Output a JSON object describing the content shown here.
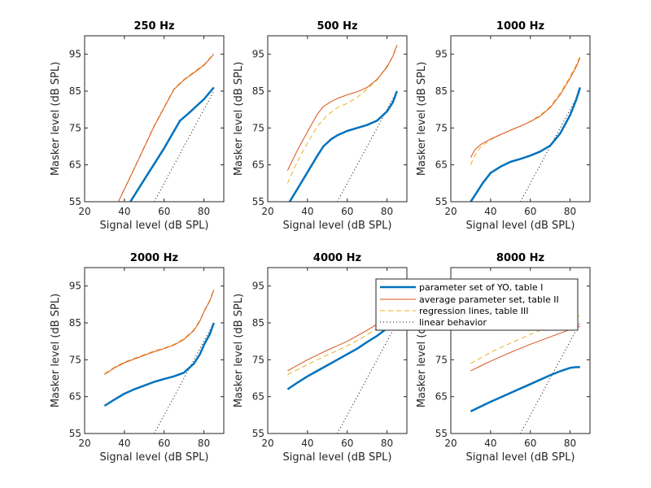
{
  "figure": {
    "background": "#ffffff"
  },
  "colors": {
    "yo": "#0072BD",
    "average": "#D95319",
    "regression": "#EDB120",
    "linear": "#000000"
  },
  "legend": {
    "position": "top-right of 8000 Hz panel",
    "entries": [
      {
        "key": "yo",
        "label": "parameter set of YO, table I"
      },
      {
        "key": "average",
        "label": "average parameter set, table II"
      },
      {
        "key": "regression",
        "label": "regression lines, table III"
      },
      {
        "key": "linear",
        "label": "linear behavior"
      }
    ]
  },
  "chart_data": [
    {
      "type": "line",
      "title": "250 Hz",
      "xlabel": "Signal level (dB SPL)",
      "ylabel": "Masker level (dB SPL)",
      "xlim": [
        20,
        90
      ],
      "ylim": [
        55,
        100
      ],
      "xticks": [
        20,
        40,
        60,
        80
      ],
      "yticks": [
        55,
        65,
        75,
        85,
        95
      ],
      "grid": false,
      "series": [
        {
          "name": "parameter set of YO, table I",
          "key": "yo",
          "x": [
            43,
            50,
            60,
            68,
            72,
            76,
            80,
            85
          ],
          "y": [
            55,
            61,
            69.5,
            77,
            78.8,
            80.8,
            82.8,
            86
          ]
        },
        {
          "name": "average parameter set, table II",
          "key": "average",
          "x": [
            37,
            45,
            55,
            65,
            70,
            75,
            80,
            85
          ],
          "y": [
            55,
            64,
            75.5,
            85.5,
            88,
            90,
            92,
            95
          ]
        },
        {
          "name": "regression lines, table III",
          "key": "regression",
          "x": [
            37,
            45,
            55,
            65,
            70,
            75,
            80,
            85
          ],
          "y": [
            55,
            64.2,
            75.7,
            85.7,
            88.2,
            90.2,
            92.2,
            95.2
          ]
        },
        {
          "name": "linear behavior",
          "key": "linear",
          "x": [
            55,
            85
          ],
          "y": [
            55,
            85
          ]
        }
      ]
    },
    {
      "type": "line",
      "title": "500 Hz",
      "xlabel": "Signal level (dB SPL)",
      "ylabel": "Masker level (dB SPL)",
      "xlim": [
        20,
        90
      ],
      "ylim": [
        55,
        100
      ],
      "xticks": [
        20,
        40,
        60,
        80
      ],
      "yticks": [
        55,
        65,
        75,
        85,
        95
      ],
      "grid": false,
      "series": [
        {
          "name": "parameter set of YO, table I",
          "key": "yo",
          "x": [
            31,
            35,
            40,
            45,
            48,
            52,
            55,
            60,
            65,
            70,
            75,
            80,
            83,
            85
          ],
          "y": [
            55,
            58.5,
            63,
            67.5,
            70,
            72,
            73,
            74.2,
            75,
            75.8,
            77,
            79.5,
            82,
            85
          ]
        },
        {
          "name": "average parameter set, table II",
          "key": "average",
          "x": [
            30,
            35,
            40,
            45,
            48,
            52,
            55,
            60,
            65,
            70,
            75,
            80,
            83,
            85
          ],
          "y": [
            63.5,
            69,
            74,
            78.8,
            80.8,
            82.2,
            83,
            84,
            84.8,
            86,
            88.2,
            91.5,
            94.5,
            97.5
          ]
        },
        {
          "name": "regression lines, table III",
          "key": "regression",
          "x": [
            30,
            35,
            40,
            45,
            50,
            55,
            60,
            65,
            70,
            75,
            80,
            83,
            85
          ],
          "y": [
            60,
            66,
            71,
            75.5,
            78.5,
            80.5,
            81.7,
            83.3,
            85.5,
            88,
            91.8,
            94.5,
            97
          ]
        },
        {
          "name": "linear behavior",
          "key": "linear",
          "x": [
            55,
            85
          ],
          "y": [
            55,
            85
          ]
        }
      ]
    },
    {
      "type": "line",
      "title": "1000 Hz",
      "xlabel": "Signal level (dB SPL)",
      "ylabel": "Masker level (dB SPL)",
      "xlim": [
        20,
        90
      ],
      "ylim": [
        55,
        100
      ],
      "xticks": [
        20,
        40,
        60,
        80
      ],
      "yticks": [
        55,
        65,
        75,
        85,
        95
      ],
      "grid": false,
      "series": [
        {
          "name": "parameter set of YO, table I",
          "key": "yo",
          "x": [
            30,
            33,
            36,
            40,
            45,
            50,
            55,
            60,
            65,
            70,
            75,
            80,
            83,
            85
          ],
          "y": [
            55,
            57.5,
            60,
            62.8,
            64.5,
            65.8,
            66.6,
            67.5,
            68.6,
            70.2,
            73.5,
            78.5,
            82.5,
            86
          ]
        },
        {
          "name": "average parameter set, table II",
          "key": "average",
          "x": [
            30,
            32,
            35,
            40,
            45,
            50,
            55,
            60,
            65,
            70,
            75,
            80,
            83,
            85
          ],
          "y": [
            67,
            69,
            70.5,
            72,
            73.2,
            74.4,
            75.5,
            76.7,
            78.2,
            80.5,
            84,
            88.5,
            91.5,
            94
          ]
        },
        {
          "name": "regression lines, table III",
          "key": "regression",
          "x": [
            30,
            32,
            35,
            40,
            45,
            50,
            55,
            60,
            65,
            70,
            75,
            80,
            83,
            85
          ],
          "y": [
            65,
            67.5,
            69.8,
            71.8,
            73.2,
            74.4,
            75.5,
            76.8,
            78.5,
            80.8,
            84.5,
            89,
            92,
            94.5
          ]
        },
        {
          "name": "linear behavior",
          "key": "linear",
          "x": [
            55,
            85
          ],
          "y": [
            55,
            85
          ]
        }
      ]
    },
    {
      "type": "line",
      "title": "2000 Hz",
      "xlabel": "Signal level (dB SPL)",
      "ylabel": "Masker level (dB SPL)",
      "xlim": [
        20,
        90
      ],
      "ylim": [
        55,
        100
      ],
      "xticks": [
        20,
        40,
        60,
        80
      ],
      "yticks": [
        55,
        65,
        75,
        85,
        95
      ],
      "grid": false,
      "series": [
        {
          "name": "parameter set of YO, table I",
          "key": "yo",
          "x": [
            30,
            35,
            40,
            45,
            50,
            55,
            60,
            65,
            70,
            75,
            78,
            80,
            83,
            85
          ],
          "y": [
            62.5,
            64.2,
            65.8,
            67,
            68,
            69,
            69.8,
            70.5,
            71.5,
            74,
            76.5,
            79,
            82,
            85
          ]
        },
        {
          "name": "average parameter set, table II",
          "key": "average",
          "x": [
            30,
            35,
            40,
            45,
            50,
            55,
            60,
            65,
            70,
            75,
            78,
            80,
            83,
            85
          ],
          "y": [
            71,
            72.8,
            74.2,
            75.2,
            76.2,
            77.2,
            78,
            79,
            80.5,
            83,
            85.5,
            88,
            91,
            94
          ]
        },
        {
          "name": "regression lines, table III",
          "key": "regression",
          "x": [
            30,
            35,
            40,
            45,
            50,
            55,
            60,
            65,
            70,
            75,
            78,
            80,
            83,
            85
          ],
          "y": [
            71.3,
            73,
            74.4,
            75.4,
            76.4,
            77.4,
            78.2,
            79.2,
            80.7,
            83.2,
            85.7,
            88.2,
            91.2,
            94.2
          ]
        },
        {
          "name": "linear behavior",
          "key": "linear",
          "x": [
            55,
            85
          ],
          "y": [
            55,
            85
          ]
        }
      ]
    },
    {
      "type": "line",
      "title": "4000 Hz",
      "xlabel": "Signal level (dB SPL)",
      "ylabel": "Masker level (dB SPL)",
      "xlim": [
        20,
        90
      ],
      "ylim": [
        55,
        100
      ],
      "xticks": [
        20,
        40,
        60,
        80
      ],
      "yticks": [
        55,
        65,
        75,
        85,
        95
      ],
      "grid": false,
      "series": [
        {
          "name": "parameter set of YO, table I",
          "key": "yo",
          "x": [
            30,
            35,
            40,
            45,
            50,
            55,
            60,
            65,
            70,
            75,
            80,
            83,
            85
          ],
          "y": [
            67,
            68.8,
            70.5,
            72,
            73.5,
            75,
            76.5,
            78,
            79.8,
            81.5,
            83.5,
            84.8,
            86
          ]
        },
        {
          "name": "average parameter set, table II",
          "key": "average",
          "x": [
            30,
            35,
            40,
            45,
            50,
            55,
            60,
            65,
            70,
            75,
            80,
            83,
            85
          ],
          "y": [
            72,
            73.5,
            75,
            76.3,
            77.6,
            78.8,
            80,
            81.5,
            83,
            84.7,
            86.5,
            88,
            89
          ]
        },
        {
          "name": "regression lines, table III",
          "key": "regression",
          "x": [
            30,
            35,
            40,
            45,
            50,
            55,
            60,
            65,
            70,
            75,
            80,
            83,
            85
          ],
          "y": [
            71,
            72.3,
            73.7,
            75,
            76.3,
            77.5,
            78.8,
            80.2,
            81.8,
            83.5,
            85.3,
            86.5,
            87.5
          ]
        },
        {
          "name": "linear behavior",
          "key": "linear",
          "x": [
            55,
            85
          ],
          "y": [
            55,
            85
          ]
        }
      ]
    },
    {
      "type": "line",
      "title": "8000 Hz",
      "xlabel": "Signal level (dB SPL)",
      "ylabel": "Masker level (dB SPL)",
      "xlim": [
        20,
        90
      ],
      "ylim": [
        55,
        100
      ],
      "xticks": [
        20,
        40,
        60,
        80
      ],
      "yticks": [
        55,
        65,
        75,
        85,
        95
      ],
      "grid": false,
      "series": [
        {
          "name": "parameter set of YO, table I",
          "key": "yo",
          "x": [
            30,
            35,
            40,
            45,
            50,
            55,
            60,
            65,
            70,
            75,
            80,
            83,
            85
          ],
          "y": [
            61,
            62.3,
            63.6,
            64.8,
            66,
            67.2,
            68.4,
            69.6,
            70.8,
            71.9,
            72.8,
            73,
            73
          ]
        },
        {
          "name": "average parameter set, table II",
          "key": "average",
          "x": [
            30,
            35,
            40,
            45,
            50,
            55,
            60,
            65,
            70,
            75,
            80,
            83,
            85
          ],
          "y": [
            72,
            73.3,
            74.6,
            75.8,
            77,
            78.1,
            79.2,
            80.2,
            81.2,
            82.2,
            83.2,
            83.8,
            84
          ]
        },
        {
          "name": "regression lines, table III",
          "key": "regression",
          "x": [
            30,
            35,
            40,
            45,
            50,
            55,
            60,
            65,
            70,
            75,
            80,
            83,
            85
          ],
          "y": [
            74,
            75.5,
            77,
            78.3,
            79.5,
            80.7,
            81.9,
            83,
            84,
            85,
            86,
            86.6,
            87
          ]
        },
        {
          "name": "linear behavior",
          "key": "linear",
          "x": [
            55,
            85
          ],
          "y": [
            55,
            85
          ]
        }
      ]
    }
  ]
}
